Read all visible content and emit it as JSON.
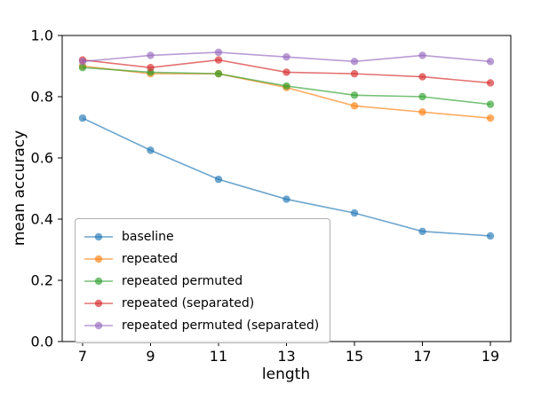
{
  "chart_data": {
    "type": "line",
    "title": "",
    "xlabel": "length",
    "ylabel": "mean accuracy",
    "x": [
      7,
      9,
      11,
      13,
      15,
      17,
      19
    ],
    "xticks": [
      7,
      9,
      11,
      13,
      15,
      17,
      19
    ],
    "yticks": [
      0.0,
      0.2,
      0.4,
      0.6,
      0.8,
      1.0
    ],
    "ylim": [
      0.0,
      1.0
    ],
    "grid": false,
    "legend_position": "lower left",
    "line_opacity": 0.65,
    "series": [
      {
        "name": "baseline",
        "color": "#1f77b4",
        "values": [
          0.73,
          0.625,
          0.53,
          0.465,
          0.42,
          0.36,
          0.345
        ]
      },
      {
        "name": "repeated",
        "color": "#ff7f0e",
        "values": [
          0.9,
          0.875,
          0.875,
          0.83,
          0.77,
          0.75,
          0.73
        ]
      },
      {
        "name": "repeated permuted",
        "color": "#2ca02c",
        "values": [
          0.895,
          0.88,
          0.875,
          0.835,
          0.805,
          0.8,
          0.775
        ]
      },
      {
        "name": "repeated (separated)",
        "color": "#d62728",
        "values": [
          0.92,
          0.895,
          0.92,
          0.88,
          0.875,
          0.865,
          0.845
        ]
      },
      {
        "name": "repeated permuted (separated)",
        "color": "#9467bd",
        "values": [
          0.915,
          0.935,
          0.945,
          0.93,
          0.915,
          0.935,
          0.915
        ]
      }
    ]
  }
}
